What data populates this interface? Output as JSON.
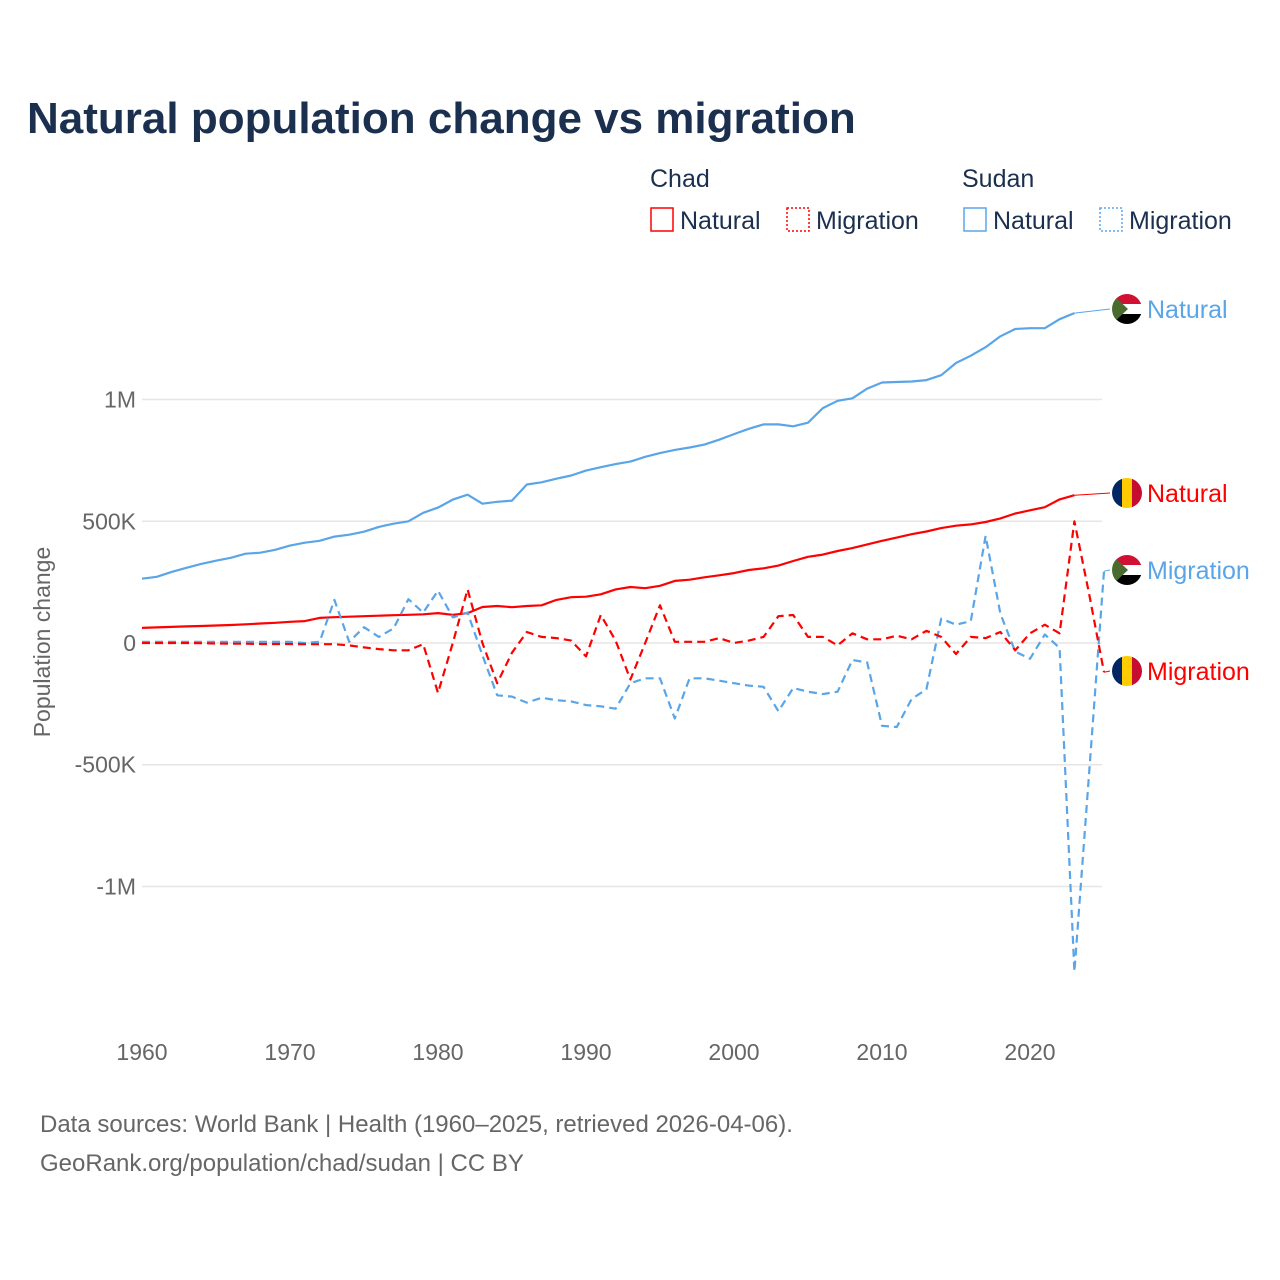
{
  "chart_data": {
    "type": "line",
    "title": "Natural population change vs migration",
    "xlabel": "",
    "ylabel": "Population change",
    "xlim": [
      1960,
      2025
    ],
    "ylim": [
      -1450000,
      1450000
    ],
    "x_ticks": [
      1960,
      1970,
      1980,
      1990,
      2000,
      2010,
      2020
    ],
    "x_tick_labels": [
      "1960",
      "1970",
      "1980",
      "1990",
      "2000",
      "2010",
      "2020"
    ],
    "y_ticks": [
      1000000,
      500000,
      0,
      -500000,
      -1000000
    ],
    "y_tick_labels": [
      "1M",
      "500K",
      "0",
      "-500K",
      "-1M"
    ],
    "grid": "horizontal",
    "legend": {
      "placement": "top-right",
      "groups": [
        {
          "title": "Chad",
          "items": [
            {
              "label": "Natural",
              "color": "#ff0000",
              "style": "solid"
            },
            {
              "label": "Migration",
              "color": "#ff0000",
              "style": "dotted"
            }
          ]
        },
        {
          "title": "Sudan",
          "items": [
            {
              "label": "Natural",
              "color": "#5aa5e8",
              "style": "solid"
            },
            {
              "label": "Migration",
              "color": "#5aa5e8",
              "style": "dotted"
            }
          ]
        }
      ]
    },
    "start_year": 1960,
    "series": [
      {
        "name": "Sudan Natural",
        "country": "Sudan",
        "end_label": "Natural",
        "color": "#5aa5e8",
        "dash": false,
        "flag": "sudan",
        "values_k": [
          264,
          272,
          292,
          309,
          325,
          338,
          350,
          367,
          371,
          383,
          400,
          412,
          420,
          437,
          445,
          457,
          477,
          490,
          500,
          535,
          556,
          589,
          609,
          572,
          580,
          585,
          651,
          660,
          675,
          688,
          708,
          722,
          735,
          745,
          765,
          780,
          793,
          803,
          815,
          835,
          858,
          880,
          898,
          898,
          890,
          905,
          965,
          995,
          1005,
          1045,
          1070,
          1072,
          1074,
          1080,
          1100,
          1150,
          1180,
          1215,
          1260,
          1290,
          1293,
          1293,
          1330,
          1355
        ]
      },
      {
        "name": "Chad Natural",
        "country": "Chad",
        "end_label": "Natural",
        "color": "#ff0000",
        "dash": false,
        "flag": "chad",
        "values_k": [
          62,
          64,
          66,
          68,
          70,
          72,
          74,
          77,
          80,
          83,
          87,
          90,
          103,
          106,
          108,
          110,
          112,
          114,
          116,
          118,
          123,
          116,
          123,
          148,
          152,
          147,
          152,
          155,
          177,
          188,
          190,
          200,
          220,
          230,
          225,
          235,
          255,
          260,
          270,
          278,
          287,
          300,
          307,
          318,
          337,
          354,
          363,
          378,
          390,
          405,
          420,
          433,
          447,
          458,
          472,
          482,
          487,
          497,
          512,
          532,
          545,
          558,
          590,
          607
        ]
      },
      {
        "name": "Sudan Migration",
        "country": "Sudan",
        "end_label": "Migration",
        "color": "#5aa5e8",
        "dash": true,
        "flag": "sudan",
        "values_k": [
          5,
          5,
          5,
          5,
          5,
          5,
          5,
          5,
          5,
          5,
          5,
          0,
          5,
          177,
          5,
          65,
          25,
          60,
          180,
          125,
          215,
          105,
          125,
          -50,
          -215,
          -220,
          -245,
          -225,
          -235,
          -240,
          -255,
          -260,
          -270,
          -165,
          -145,
          -145,
          -310,
          -145,
          -145,
          -155,
          -165,
          -175,
          -180,
          -280,
          -185,
          -200,
          -210,
          -200,
          -70,
          -80,
          -340,
          -345,
          -230,
          -190,
          100,
          75,
          90,
          440,
          120,
          -35,
          -65,
          35,
          -20,
          -1350,
          -530,
          295
        ]
      },
      {
        "name": "Chad Migration",
        "country": "Chad",
        "end_label": "Migration",
        "color": "#ff0000",
        "dash": true,
        "flag": "chad",
        "values_k": [
          0,
          0,
          0,
          0,
          -1,
          -2,
          -3,
          -3,
          -4,
          -4,
          -4,
          -5,
          -5,
          -5,
          -10,
          -18,
          -25,
          -30,
          -30,
          -5,
          -205,
          0,
          220,
          0,
          -165,
          -40,
          45,
          25,
          20,
          10,
          -55,
          115,
          10,
          -150,
          0,
          155,
          5,
          5,
          5,
          20,
          0,
          10,
          25,
          110,
          115,
          25,
          25,
          -10,
          40,
          15,
          15,
          30,
          15,
          50,
          25,
          -45,
          25,
          20,
          45,
          -30,
          40,
          75,
          40,
          500,
          200,
          -120
        ]
      }
    ]
  },
  "footer": {
    "line1": "Data sources: World Bank | Health (1960–2025, retrieved 2026-04-06).",
    "line2": "GeoRank.org/population/chad/sudan | CC BY"
  }
}
